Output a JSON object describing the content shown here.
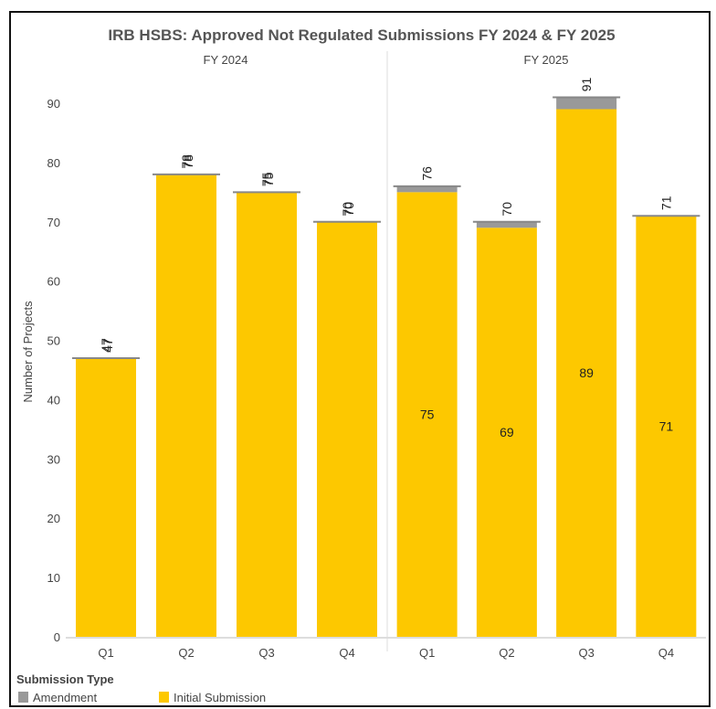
{
  "colors": {
    "amendment": "#999999",
    "initial": "#FDC800",
    "cap": "#888888",
    "grid": "#dddddd",
    "axis": "#bbbbbb"
  },
  "legend": {
    "title": "Submission Type",
    "items": [
      {
        "label": "Amendment",
        "color_key": "amendment"
      },
      {
        "label": "Initial Submission",
        "color_key": "initial"
      }
    ]
  },
  "chart_data": {
    "type": "bar",
    "stacked": true,
    "title": "IRB HSBS: Approved Not Regulated Submissions  FY 2024 & FY 2025",
    "ylabel": "Number of Projects",
    "xlabel": "",
    "ylim": [
      0,
      92
    ],
    "yticks": [
      0,
      10,
      20,
      30,
      40,
      50,
      60,
      70,
      80,
      90
    ],
    "grid": false,
    "legend_placement": "bottom-left",
    "panels": [
      {
        "label": "FY 2024",
        "categories": [
          "Q1",
          "Q2",
          "Q3",
          "Q4"
        ],
        "series": [
          {
            "name": "Initial Submission",
            "values": [
              47,
              78,
              75,
              70
            ]
          },
          {
            "name": "Amendment",
            "values": [
              0,
              0,
              0,
              0
            ]
          }
        ],
        "totals": [
          47,
          78,
          75,
          70
        ],
        "initial_labels": [
          "47",
          "78",
          "75",
          "70"
        ]
      },
      {
        "label": "FY 2025",
        "categories": [
          "Q1",
          "Q2",
          "Q3",
          "Q4"
        ],
        "series": [
          {
            "name": "Initial Submission",
            "values": [
              75,
              69,
              89,
              71
            ]
          },
          {
            "name": "Amendment",
            "values": [
              1,
              1,
              2,
              0
            ]
          }
        ],
        "totals": [
          76,
          70,
          91,
          71
        ],
        "initial_labels": [
          "75",
          "69",
          "89",
          "71"
        ]
      }
    ]
  }
}
